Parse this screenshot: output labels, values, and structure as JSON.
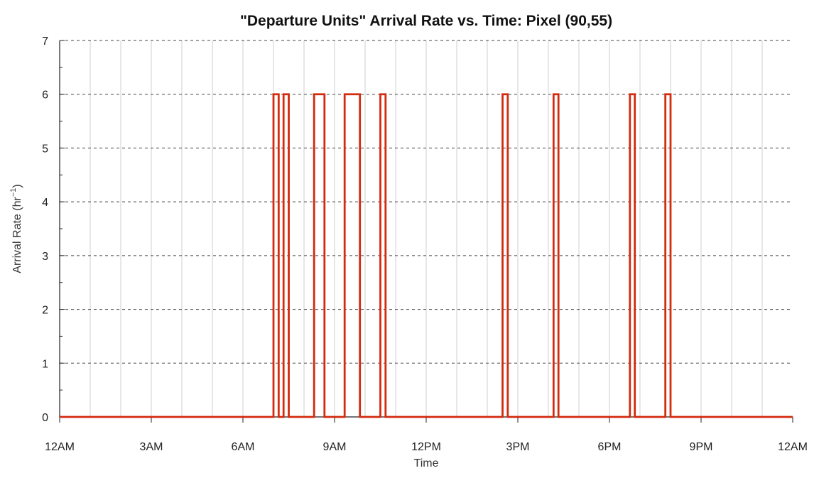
{
  "chart_data": {
    "type": "line",
    "title": "\"Departure Units\" Arrival Rate vs. Time: Pixel (90,55)",
    "xlabel": "Time",
    "ylabel_main": "Arrival Rate (hr",
    "ylabel_sup": "−1",
    "ylabel_close": ")",
    "x_unit": "hours since 12AM",
    "xlim": [
      0,
      24
    ],
    "ylim": [
      0,
      7
    ],
    "x_ticks": [
      {
        "value": 0,
        "label": "12AM"
      },
      {
        "value": 3,
        "label": "3AM"
      },
      {
        "value": 6,
        "label": "6AM"
      },
      {
        "value": 9,
        "label": "9AM"
      },
      {
        "value": 12,
        "label": "12PM"
      },
      {
        "value": 15,
        "label": "3PM"
      },
      {
        "value": 18,
        "label": "6PM"
      },
      {
        "value": 21,
        "label": "9PM"
      },
      {
        "value": 24,
        "label": "12AM"
      }
    ],
    "y_ticks": [
      0,
      1,
      2,
      3,
      4,
      5,
      6,
      7
    ],
    "grid": true,
    "line_color": "#d42a0e",
    "pulses": [
      {
        "start": 7.0,
        "end": 7.17,
        "value": 6
      },
      {
        "start": 7.33,
        "end": 7.5,
        "value": 6
      },
      {
        "start": 8.33,
        "end": 8.67,
        "value": 6
      },
      {
        "start": 9.33,
        "end": 9.83,
        "value": 6
      },
      {
        "start": 10.5,
        "end": 10.67,
        "value": 6
      },
      {
        "start": 14.5,
        "end": 14.67,
        "value": 6
      },
      {
        "start": 16.17,
        "end": 16.33,
        "value": 6
      },
      {
        "start": 18.67,
        "end": 18.83,
        "value": 6
      },
      {
        "start": 19.83,
        "end": 20.0,
        "value": 6
      }
    ]
  }
}
